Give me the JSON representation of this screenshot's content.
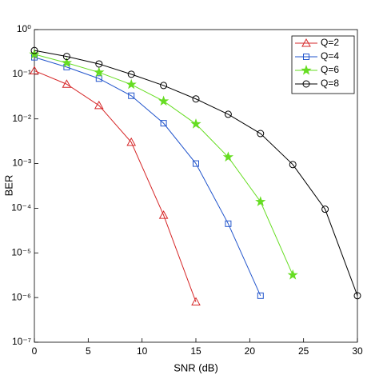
{
  "chart_data": {
    "type": "line",
    "xlabel": "SNR (dB)",
    "ylabel": "BER",
    "xlim": [
      0,
      30
    ],
    "xticks": [
      0,
      5,
      10,
      15,
      20,
      25,
      30
    ],
    "ylim": [
      1e-07,
      1
    ],
    "yscale": "log",
    "yticks": [
      {
        "value": 1e-07,
        "label": "10⁻⁷"
      },
      {
        "value": 1e-06,
        "label": "10⁻⁶"
      },
      {
        "value": 1e-05,
        "label": "10⁻⁵"
      },
      {
        "value": 0.0001,
        "label": "10⁻⁴"
      },
      {
        "value": 0.001,
        "label": "10⁻³"
      },
      {
        "value": 0.01,
        "label": "10⁻²"
      },
      {
        "value": 0.1,
        "label": "10⁻¹"
      },
      {
        "value": 1,
        "label": "10⁰"
      }
    ],
    "legend": "upper right",
    "series": [
      {
        "name": "Q=2",
        "color": "#d62728",
        "marker": "triangle",
        "x": [
          0,
          3,
          6,
          9,
          12,
          15
        ],
        "values": [
          0.12,
          0.06,
          0.02,
          0.003,
          7e-05,
          8e-07
        ]
      },
      {
        "name": "Q=4",
        "color": "#2255cc",
        "marker": "square",
        "x": [
          0,
          3,
          6,
          9,
          12,
          15,
          18,
          21
        ],
        "values": [
          0.24,
          0.145,
          0.08,
          0.033,
          0.008,
          0.001,
          4.5e-05,
          1.1e-06
        ]
      },
      {
        "name": "Q=6",
        "color": "#66dd22",
        "marker": "star",
        "x": [
          0,
          3,
          6,
          9,
          12,
          15,
          18,
          21,
          24
        ],
        "values": [
          0.28,
          0.18,
          0.11,
          0.059,
          0.025,
          0.0077,
          0.0014,
          0.00014,
          3.2e-06
        ]
      },
      {
        "name": "Q=8",
        "color": "#000000",
        "marker": "circle",
        "x": [
          0,
          3,
          6,
          9,
          12,
          15,
          18,
          21,
          24,
          27,
          30
        ],
        "values": [
          0.34,
          0.25,
          0.17,
          0.1,
          0.056,
          0.028,
          0.0127,
          0.0047,
          0.00095,
          9.5e-05,
          1.1e-06
        ]
      }
    ]
  }
}
